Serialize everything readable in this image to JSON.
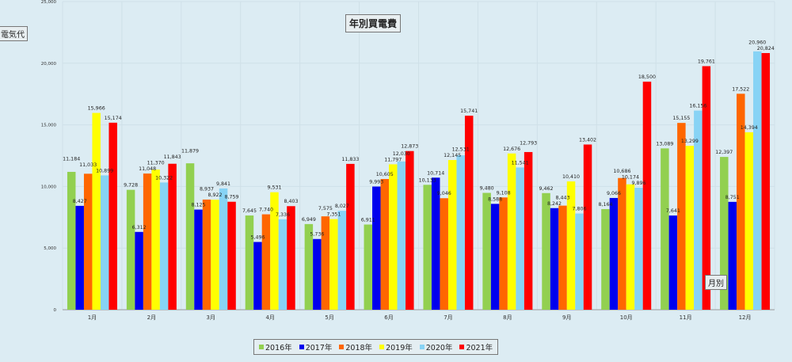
{
  "chart_data": {
    "type": "bar",
    "title": "年別買電費",
    "xlabel": "月別",
    "ylabel": "電気代",
    "ylim": [
      0,
      25000
    ],
    "yticks": [
      0,
      5000,
      10000,
      15000,
      20000,
      25000
    ],
    "ytick_labels": [
      "0",
      "5,000",
      "10,000",
      "15,000",
      "20,000",
      "25,000"
    ],
    "categories": [
      "1月",
      "2月",
      "3月",
      "4月",
      "5月",
      "6月",
      "7月",
      "8月",
      "9月",
      "10月",
      "11月",
      "12月"
    ],
    "legend_position": "bottom",
    "series": [
      {
        "name": "2016年",
        "color": "#92d050",
        "values": [
          11184,
          9728,
          11879,
          7645,
          6949,
          6911,
          10133,
          9480,
          9462,
          8164,
          13089,
          12397
        ]
      },
      {
        "name": "2017年",
        "color": "#0000ee",
        "values": [
          8427,
          6312,
          8125,
          5496,
          5736,
          9993,
          10714,
          8588,
          8242,
          9066,
          7641,
          8751
        ]
      },
      {
        "name": "2018年",
        "color": "#ff6600",
        "values": [
          11033,
          11048,
          8937,
          7740,
          7575,
          10605,
          9046,
          9108,
          8443,
          10686,
          15155,
          17522
        ]
      },
      {
        "name": "2019年",
        "color": "#ffff00",
        "values": [
          15966,
          11370,
          8922,
          9531,
          7351,
          11797,
          12145,
          12676,
          10410,
          10174,
          13299,
          14394
        ]
      },
      {
        "name": "2020年",
        "color": "#87d3f5",
        "values": [
          10899,
          10322,
          9841,
          7336,
          8027,
          12030,
          12531,
          11541,
          7806,
          9896,
          16156,
          20960
        ]
      },
      {
        "name": "2021年",
        "color": "#ff0000",
        "values": [
          15174,
          11843,
          8759,
          8403,
          11833,
          12873,
          15741,
          12793,
          13402,
          18500,
          19761,
          20824
        ]
      }
    ]
  }
}
